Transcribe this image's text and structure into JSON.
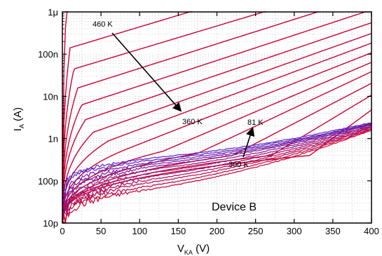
{
  "chart_data": {
    "type": "line",
    "title": "",
    "xlabel": "V",
    "xlabel_sub": "KA",
    "xlabel_unit": " (V)",
    "ylabel": "I",
    "ylabel_sub": "A",
    "ylabel_unit": " (A)",
    "xlim": [
      0,
      400
    ],
    "ylim_log10": [
      -11,
      -6
    ],
    "y_scale": "log",
    "grid": true,
    "x_ticks": [
      0,
      50,
      100,
      150,
      200,
      250,
      300,
      350,
      400
    ],
    "x_tick_labels": [
      "0",
      "50",
      "100",
      "150",
      "200",
      "250",
      "300",
      "350",
      "400"
    ],
    "y_ticks_log10": [
      -11,
      -10,
      -9,
      -8,
      -7,
      -6
    ],
    "y_tick_labels": [
      "10p",
      "100p",
      "1n",
      "10n",
      "100n",
      "1μ"
    ],
    "annotations": {
      "device": "Device B",
      "t_high_start": "460 K",
      "t_high_end": "360 K",
      "t_low_start": "300 K",
      "t_low_end": "81 K"
    },
    "colors": {
      "hot": "#cc0033",
      "cold": "#5522cc",
      "axis": "#000000",
      "grid": "#b0b0b0"
    },
    "hot_curves": [
      {
        "v0": 5,
        "i0_log10": -6.0,
        "slope_per_100V": 0.55
      },
      {
        "v0": 10,
        "i0_log10": -6.85,
        "slope_per_100V": 0.55
      },
      {
        "v0": 15,
        "i0_log10": -7.35,
        "slope_per_100V": 0.55
      },
      {
        "v0": 20,
        "i0_log10": -7.8,
        "slope_per_100V": 0.58
      },
      {
        "v0": 25,
        "i0_log10": -8.2,
        "slope_per_100V": 0.6
      },
      {
        "v0": 30,
        "i0_log10": -8.55,
        "slope_per_100V": 0.62
      },
      {
        "v0": 40,
        "i0_log10": -8.85,
        "slope_per_100V": 0.65
      },
      {
        "v0": 60,
        "i0_log10": -9.05,
        "slope_per_100V": 0.68
      },
      {
        "v0": 90,
        "i0_log10": -9.2,
        "slope_per_100V": 0.72
      },
      {
        "v0": 130,
        "i0_log10": -9.3,
        "slope_per_100V": 0.78
      },
      {
        "v0": 175,
        "i0_log10": -9.35,
        "slope_per_100V": 0.86
      },
      {
        "v0": 220,
        "i0_log10": -9.4,
        "slope_per_100V": 0.95
      },
      {
        "v0": 270,
        "i0_log10": -9.4,
        "slope_per_100V": 1.1
      },
      {
        "v0": 320,
        "i0_log10": -9.4,
        "slope_per_100V": 1.35
      }
    ],
    "low_curves": [
      {
        "name": "81 K",
        "start_log10": -9.95,
        "knee_log10": -9.45,
        "end_log10": -8.62,
        "noise": 0.08
      },
      {
        "name": "",
        "start_log10": -10.0,
        "knee_log10": -9.5,
        "end_log10": -8.64,
        "noise": 0.09
      },
      {
        "name": "",
        "start_log10": -10.15,
        "knee_log10": -9.55,
        "end_log10": -8.65,
        "noise": 0.1
      },
      {
        "name": "",
        "start_log10": -10.25,
        "knee_log10": -9.6,
        "end_log10": -8.66,
        "noise": 0.1
      },
      {
        "name": "",
        "start_log10": -10.35,
        "knee_log10": -9.65,
        "end_log10": -8.67,
        "noise": 0.11
      },
      {
        "name": "",
        "start_log10": -10.45,
        "knee_log10": -9.72,
        "end_log10": -8.69,
        "noise": 0.12
      },
      {
        "name": "",
        "start_log10": -10.55,
        "knee_log10": -9.8,
        "end_log10": -8.7,
        "noise": 0.12
      },
      {
        "name": "",
        "start_log10": -10.6,
        "knee_log10": -9.88,
        "end_log10": -8.72,
        "noise": 0.13
      },
      {
        "name": "",
        "start_log10": -10.65,
        "knee_log10": -9.95,
        "end_log10": -8.74,
        "noise": 0.14
      },
      {
        "name": "",
        "start_log10": -10.7,
        "knee_log10": -10.02,
        "end_log10": -8.76,
        "noise": 0.14
      },
      {
        "name": "",
        "start_log10": -10.75,
        "knee_log10": -10.1,
        "end_log10": -8.78,
        "noise": 0.15
      },
      {
        "name": "300 K",
        "start_log10": -10.8,
        "knee_log10": -10.18,
        "end_log10": -8.8,
        "noise": 0.16
      }
    ]
  }
}
